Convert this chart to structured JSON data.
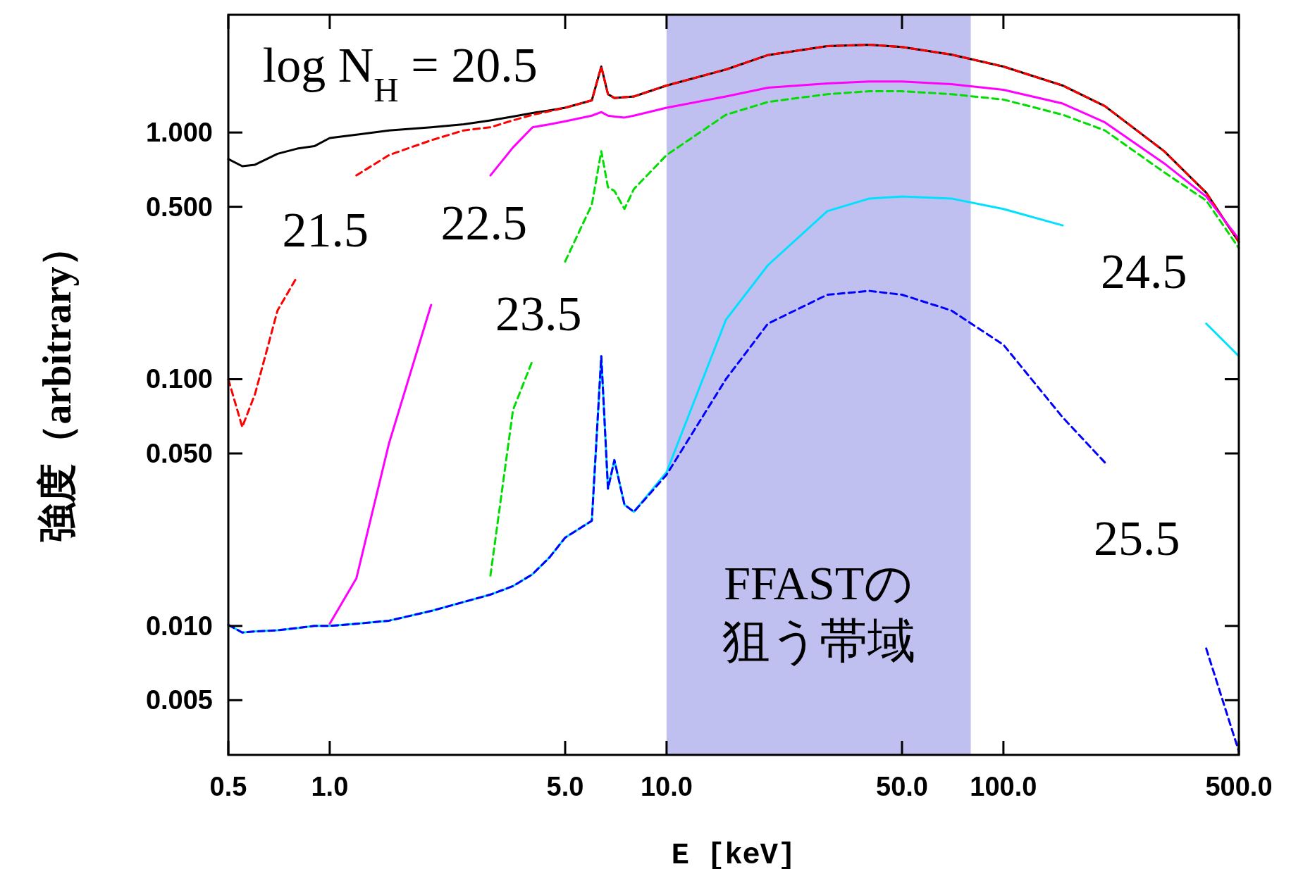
{
  "chart_data": {
    "type": "line",
    "xlabel": "E [keV]",
    "ylabel": "強度（arbitrary）",
    "log": "xy",
    "xlim": [
      0.5,
      500
    ],
    "ylim": [
      0.003,
      3
    ],
    "xticks": [
      0.5,
      {
        "value": 1,
        "label": "1.0"
      },
      {
        "value": 5,
        "label": "5.0"
      },
      {
        "value": 10,
        "label": "10.0"
      },
      {
        "value": 50,
        "label": "50.0"
      },
      {
        "value": 100,
        "label": "100.0"
      },
      {
        "value": 500,
        "label": "500.0"
      }
    ],
    "yticks": [
      {
        "value": 0.005,
        "label": "0.005"
      },
      {
        "value": 0.01,
        "label": "0.010"
      },
      {
        "value": 0.05,
        "label": "0.050"
      },
      {
        "value": 0.1,
        "label": "0.100"
      },
      {
        "value": 0.5,
        "label": "0.500"
      },
      {
        "value": 1,
        "label": "1.000"
      }
    ],
    "x": [
      0.5,
      0.55,
      0.6,
      0.7,
      0.8,
      0.9,
      1,
      1.2,
      1.5,
      2,
      2.5,
      3,
      3.5,
      4,
      4.5,
      5,
      6,
      6.4,
      6.7,
      7,
      7.5,
      8,
      10,
      15,
      20,
      30,
      40,
      50,
      70,
      100,
      150,
      200,
      300,
      400,
      500
    ],
    "series": [
      {
        "color": "#000000",
        "line_style": "solid",
        "values": [
          0.78,
          0.73,
          0.74,
          0.82,
          0.86,
          0.88,
          0.95,
          0.98,
          1.02,
          1.05,
          1.08,
          1.12,
          1.16,
          1.2,
          1.23,
          1.26,
          1.35,
          1.85,
          1.43,
          1.38,
          1.39,
          1.4,
          1.55,
          1.8,
          2.06,
          2.24,
          2.27,
          2.22,
          2.07,
          1.85,
          1.55,
          1.28,
          0.84,
          0.57,
          0.36
        ]
      },
      {
        "color": "#ff0000",
        "line_style": "dashed",
        "values": [
          0.1,
          0.064,
          0.087,
          0.19,
          0.26,
          null,
          null,
          0.67,
          0.81,
          0.93,
          1.02,
          1.05,
          1.12,
          1.18,
          1.22,
          1.26,
          1.35,
          1.85,
          1.43,
          1.38,
          1.39,
          1.4,
          1.55,
          1.8,
          2.06,
          2.24,
          2.27,
          2.22,
          2.07,
          1.85,
          1.55,
          1.28,
          0.84,
          0.57,
          0.36
        ]
      },
      {
        "color": "#ff00ff",
        "line_style": "solid",
        "values": [
          null,
          null,
          null,
          null,
          null,
          null,
          0.0102,
          0.0156,
          0.055,
          0.2,
          null,
          0.67,
          0.87,
          1.05,
          1.08,
          1.11,
          1.17,
          1.21,
          1.17,
          1.16,
          1.15,
          1.17,
          1.26,
          1.4,
          1.52,
          1.58,
          1.61,
          1.61,
          1.57,
          1.49,
          1.31,
          1.1,
          0.75,
          0.55,
          0.37
        ]
      },
      {
        "color": "#00dd00",
        "line_style": "dashed",
        "values": [
          null,
          null,
          null,
          null,
          null,
          null,
          null,
          null,
          null,
          null,
          null,
          0.016,
          0.075,
          0.119,
          null,
          0.3,
          0.51,
          0.84,
          0.6,
          0.58,
          0.49,
          0.59,
          0.81,
          1.18,
          1.33,
          1.43,
          1.47,
          1.47,
          1.43,
          1.36,
          1.18,
          1.02,
          0.69,
          0.53,
          0.34
        ]
      },
      {
        "color": "#00e0ff",
        "line_style": "solid",
        "values": [
          0.0101,
          0.0094,
          0.0095,
          0.0096,
          0.0098,
          0.01,
          0.01,
          0.0102,
          0.0105,
          0.0115,
          0.0125,
          0.0134,
          0.0145,
          0.0162,
          0.019,
          0.0228,
          0.0267,
          0.124,
          0.036,
          0.047,
          0.031,
          0.029,
          0.042,
          0.174,
          0.29,
          0.48,
          0.54,
          0.55,
          0.54,
          0.49,
          0.42,
          null,
          null,
          0.168,
          0.124
        ]
      },
      {
        "color": "#0000ff",
        "line_style": "dashed",
        "values": [
          0.0101,
          0.0094,
          0.0095,
          0.0096,
          0.0098,
          0.01,
          0.01,
          0.0102,
          0.0105,
          0.0115,
          0.0125,
          0.0134,
          0.0145,
          0.0162,
          0.019,
          0.0228,
          0.0267,
          0.124,
          0.036,
          0.047,
          0.031,
          0.029,
          0.041,
          0.1,
          0.168,
          0.22,
          0.228,
          0.22,
          0.19,
          0.138,
          0.07,
          0.046,
          null,
          0.0081,
          0.0031
        ]
      }
    ],
    "bands": [
      {
        "axis": "x",
        "from": 10,
        "to": 80,
        "label": "FFASTの狙う帯域",
        "color": "#c0c0f0"
      }
    ],
    "annotations": [
      "log N$_{H}$ = 20.5",
      "21.5",
      "22.5",
      "23.5",
      "24.5",
      "25.5"
    ]
  }
}
